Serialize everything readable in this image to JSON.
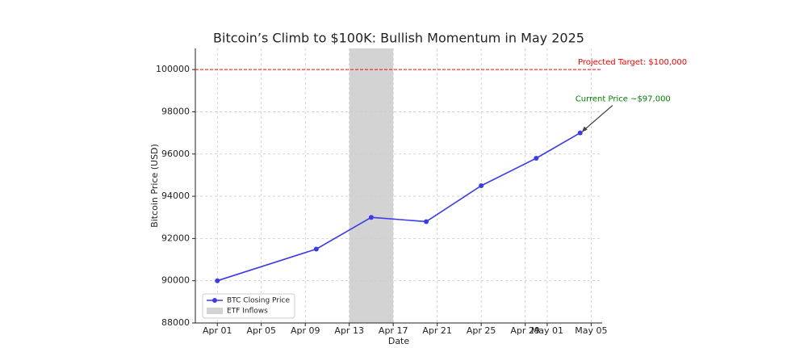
{
  "chart_data": {
    "type": "line",
    "title": "Bitcoin’s Climb to $100K: Bullish Momentum in May 2025",
    "x_label": "Date",
    "y_label": "Bitcoin Price (USD)",
    "x": [
      "Apr 01",
      "Apr 10",
      "Apr 15",
      "Apr 20",
      "Apr 25",
      "Apr 30",
      "May 04"
    ],
    "series": [
      {
        "name": "BTC Closing Price",
        "color": "#3a3af0",
        "values": [
          90000,
          91500,
          93000,
          92800,
          94500,
          95800,
          97000
        ]
      }
    ],
    "xlim": [
      "Mar 30",
      "May 06"
    ],
    "xticks": [
      "Apr 01",
      "Apr 05",
      "Apr 09",
      "Apr 13",
      "Apr 17",
      "Apr 21",
      "Apr 25",
      "Apr 29",
      "May 01",
      "May 05"
    ],
    "ylim": [
      88000,
      101000
    ],
    "yticks": [
      88000,
      90000,
      92000,
      94000,
      96000,
      98000,
      100000
    ],
    "grid": true,
    "legend": "lower left",
    "shaded_regions": [
      {
        "name": "ETF Inflows",
        "start": "Apr 13",
        "end": "Apr 17",
        "color": "#d3d3d3"
      }
    ],
    "reference_lines": [
      {
        "value": 100000,
        "color": "#ff0000",
        "label": "Projected Target: $100,000"
      }
    ],
    "annotations": [
      {
        "text": "Current Price ~$97,000",
        "color": "#008000",
        "x": "May 04",
        "y": 97000
      }
    ]
  }
}
